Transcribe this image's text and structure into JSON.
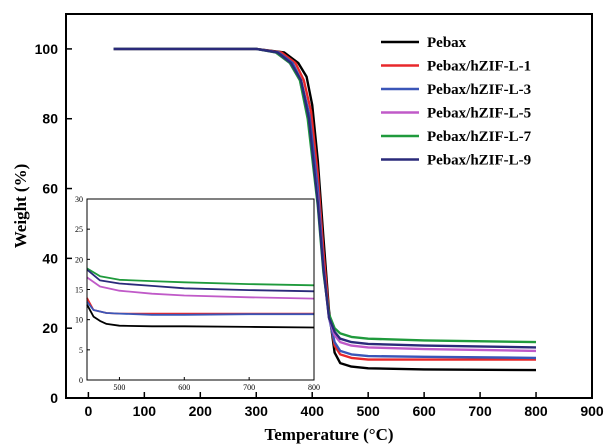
{
  "chart_data": [
    {
      "type": "line",
      "title": "",
      "xlabel": "Temperature (°C)",
      "ylabel": "Weight (%)",
      "xlim": [
        -40,
        900
      ],
      "ylim": [
        0,
        110
      ],
      "xticks": [
        "0",
        "100",
        "200",
        "300",
        "400",
        "500",
        "600",
        "700",
        "800",
        "900"
      ],
      "yticks": [
        "0",
        "20",
        "40",
        "60",
        "80",
        "100"
      ],
      "legend_position": "top-right",
      "grid": false,
      "series": [
        {
          "name": "Pebax",
          "color": "#000000",
          "x": [
            45,
            300,
            350,
            375,
            390,
            400,
            410,
            420,
            430,
            440,
            450,
            470,
            500,
            600,
            800
          ],
          "y": [
            100,
            100,
            99,
            96,
            92,
            84,
            68,
            46,
            25,
            13,
            10,
            9,
            8.5,
            8.2,
            8
          ]
        },
        {
          "name": "Pebax/hZIF-L-1",
          "color": "#e8282b",
          "x": [
            45,
            300,
            345,
            370,
            385,
            398,
            410,
            420,
            430,
            440,
            450,
            470,
            500,
            600,
            800
          ],
          "y": [
            100,
            100,
            99,
            96,
            91,
            82,
            64,
            42,
            24,
            15,
            12.5,
            11.5,
            11,
            11,
            11
          ]
        },
        {
          "name": "Pebax/hZIF-L-3",
          "color": "#3a56b8",
          "x": [
            45,
            300,
            340,
            365,
            380,
            395,
            410,
            420,
            430,
            440,
            450,
            470,
            500,
            600,
            800
          ],
          "y": [
            100,
            100,
            99,
            96,
            91,
            81,
            60,
            38,
            23,
            16,
            13.5,
            12.5,
            12,
            11.8,
            11.5
          ]
        },
        {
          "name": "Pebax/hZIF-L-5",
          "color": "#c05ac8",
          "x": [
            45,
            300,
            335,
            360,
            378,
            392,
            410,
            420,
            430,
            440,
            450,
            470,
            500,
            600,
            800
          ],
          "y": [
            100,
            100,
            99,
            96,
            91,
            81,
            57,
            37,
            23,
            18,
            16,
            15,
            14.5,
            14,
            13.5
          ]
        },
        {
          "name": "Pebax/hZIF-L-7",
          "color": "#1f9a3c",
          "x": [
            45,
            300,
            335,
            360,
            378,
            392,
            410,
            420,
            430,
            440,
            450,
            470,
            500,
            600,
            800
          ],
          "y": [
            100,
            100,
            99,
            96,
            91,
            80,
            55,
            36,
            24,
            20,
            18.5,
            17.5,
            17,
            16.5,
            16
          ]
        },
        {
          "name": "Pebax/hZIF-L-9",
          "color": "#2a2a7a",
          "x": [
            45,
            300,
            338,
            362,
            380,
            394,
            410,
            420,
            430,
            440,
            450,
            470,
            500,
            600,
            800
          ],
          "y": [
            100,
            100,
            99,
            96,
            91,
            80,
            56,
            37,
            23,
            19,
            17,
            16,
            15.5,
            15,
            14.5
          ]
        }
      ]
    },
    {
      "type": "line",
      "title": "",
      "xlabel": "",
      "ylabel": "",
      "xlim": [
        450,
        800
      ],
      "ylim": [
        0,
        30
      ],
      "xticks": [
        "500",
        "600",
        "700",
        "800"
      ],
      "yticks": [
        "0",
        "5",
        "10",
        "15",
        "20",
        "25",
        "30"
      ],
      "grid": false,
      "series": [
        {
          "color": "#000000",
          "x": [
            450,
            460,
            470,
            480,
            500,
            550,
            600,
            700,
            800
          ],
          "y": [
            12.5,
            10.5,
            9.8,
            9.3,
            9.0,
            8.9,
            8.9,
            8.8,
            8.7
          ]
        },
        {
          "color": "#e8282b",
          "x": [
            450,
            460,
            480,
            500,
            550,
            600,
            700,
            800
          ],
          "y": [
            13.6,
            11.6,
            11.1,
            11.0,
            11.0,
            11.0,
            11.0,
            11.0
          ]
        },
        {
          "color": "#3a56b8",
          "x": [
            450,
            460,
            480,
            500,
            550,
            600,
            700,
            800
          ],
          "y": [
            13.0,
            11.6,
            11.1,
            11.0,
            10.8,
            10.8,
            10.9,
            10.9
          ]
        },
        {
          "color": "#c05ac8",
          "x": [
            450,
            470,
            500,
            550,
            600,
            700,
            800
          ],
          "y": [
            17.0,
            15.5,
            14.8,
            14.3,
            14.0,
            13.7,
            13.5
          ]
        },
        {
          "color": "#1f9a3c",
          "x": [
            450,
            470,
            500,
            550,
            600,
            700,
            800
          ],
          "y": [
            18.5,
            17.2,
            16.6,
            16.4,
            16.2,
            15.9,
            15.7
          ]
        },
        {
          "color": "#2a2a7a",
          "x": [
            450,
            470,
            500,
            550,
            600,
            700,
            800
          ],
          "y": [
            18.3,
            16.5,
            16.0,
            15.6,
            15.2,
            14.9,
            14.7
          ]
        }
      ]
    }
  ]
}
